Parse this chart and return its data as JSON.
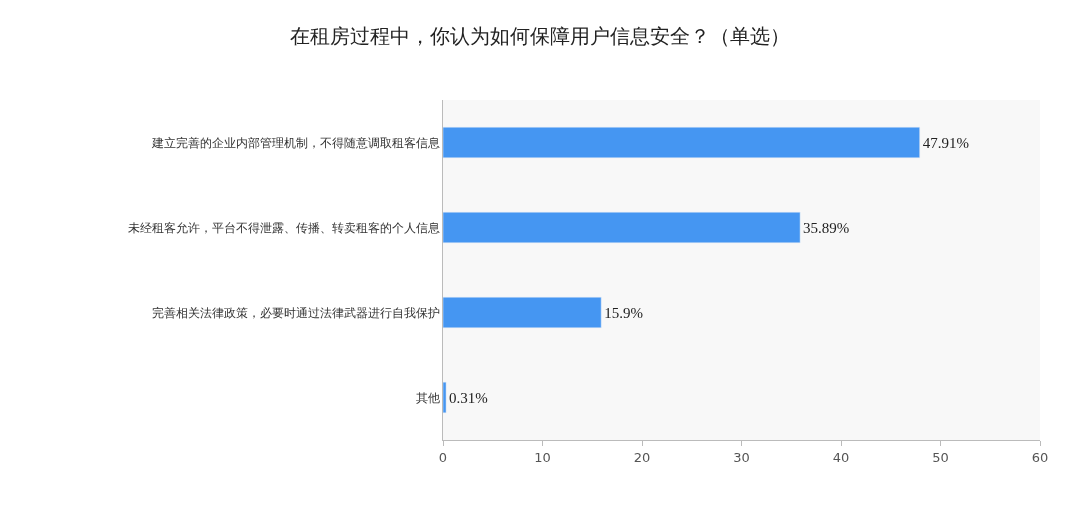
{
  "chart_data": {
    "type": "bar",
    "orientation": "horizontal",
    "title": "在租房过程中，你认为如何保障用户信息安全？（单选）",
    "categories": [
      "建立完善的企业内部管理机制，不得随意调取租客信息",
      "未经租客允许，平台不得泄露、传播、转卖租客的个人信息",
      "完善相关法律政策，必要时通过法律武器进行自我保护",
      "其他"
    ],
    "values": [
      47.91,
      35.89,
      15.9,
      0.31
    ],
    "value_labels": [
      "47.91%",
      "35.89%",
      "15.9%",
      "0.31%"
    ],
    "color": "#4596f2",
    "xlim": [
      0,
      60
    ],
    "xticks": [
      0,
      10,
      20,
      30,
      40,
      50,
      60
    ],
    "grid": false,
    "legend": false
  }
}
